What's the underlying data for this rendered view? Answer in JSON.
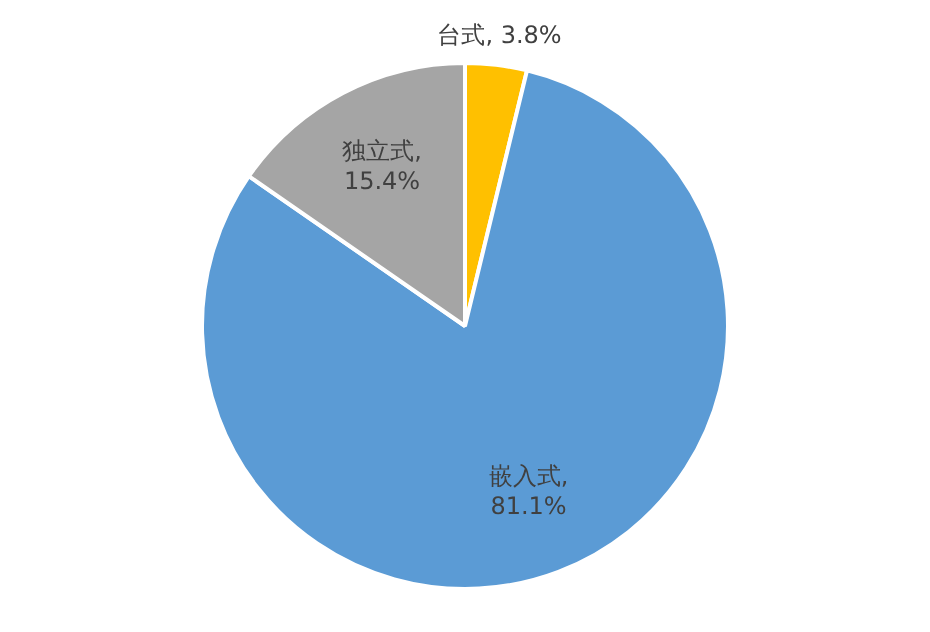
{
  "chart_data": {
    "type": "pie",
    "categories": [
      "台式",
      "嵌入式",
      "独立式"
    ],
    "values": [
      3.8,
      81.1,
      15.4
    ],
    "colors": [
      "#ffc000",
      "#5b9bd5",
      "#a5a5a5"
    ],
    "value_labels": [
      ", 3.8%",
      ",\n81.1%",
      ",\n15.4%"
    ],
    "legend": false
  }
}
